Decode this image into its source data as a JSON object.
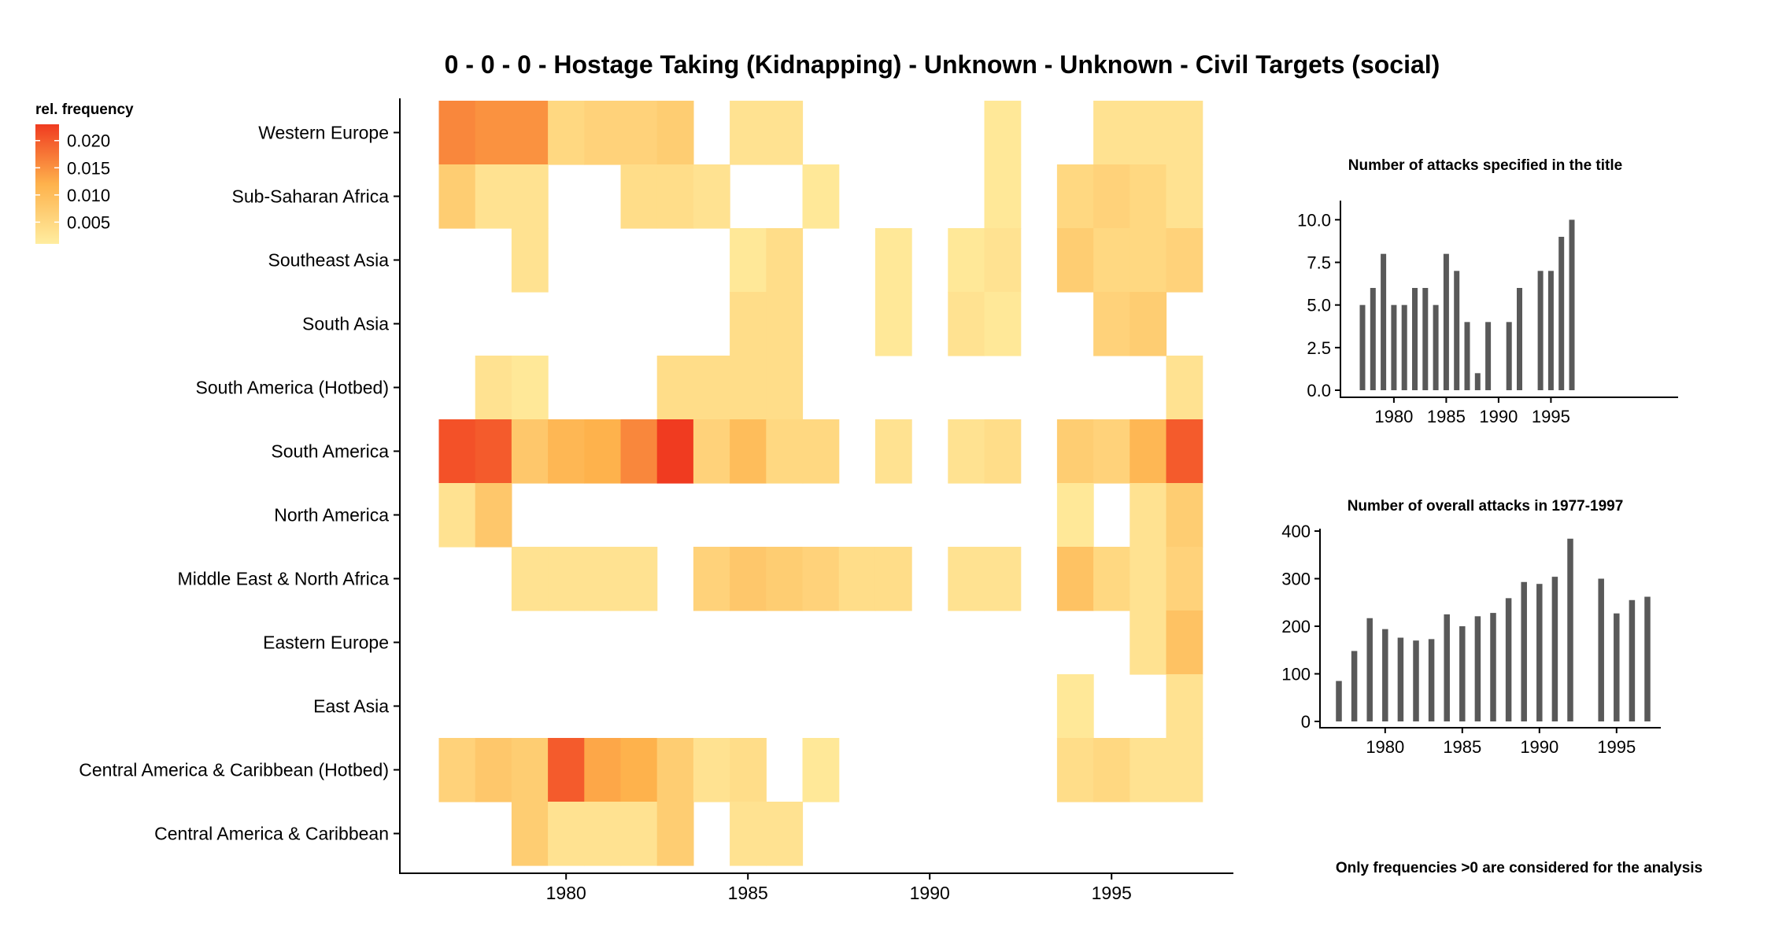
{
  "title": "0 - 0 - 0 - Hostage Taking (Kidnapping) - Unknown - Unknown - Civil Targets (social)",
  "legend": {
    "title": "rel. frequency",
    "labels": [
      "0.020",
      "0.015",
      "0.010",
      "0.005"
    ],
    "label_values": [
      0.02,
      0.015,
      0.01,
      0.005
    ],
    "range": [
      0.001,
      0.023
    ],
    "colors": {
      "low": "#FFEDA0",
      "mid": "#FEB24C",
      "high": "#F03B20"
    }
  },
  "footnote": "Only frequencies >0 are considered for the analysis",
  "chart_data": [
    {
      "type": "heatmap",
      "title": "0 - 0 - 0 - Hostage Taking (Kidnapping) - Unknown - Unknown - Civil Targets (social)",
      "x": [
        1977,
        1978,
        1979,
        1980,
        1981,
        1982,
        1983,
        1984,
        1985,
        1986,
        1987,
        1988,
        1989,
        1990,
        1991,
        1992,
        1993,
        1994,
        1995,
        1996,
        1997
      ],
      "x_ticks": [
        1980,
        1985,
        1990,
        1995
      ],
      "x_tick_labels": [
        "1980",
        "1985",
        "1990",
        "1995"
      ],
      "rows": [
        "Western Europe",
        "Sub-Saharan Africa",
        "Southeast Asia",
        "South Asia",
        "South America (Hotbed)",
        "South America",
        "North America",
        "Middle East & North Africa",
        "Eastern Europe",
        "East Asia",
        "Central America & Caribbean (Hotbed)",
        "Central America & Caribbean"
      ],
      "values": [
        [
          0.016,
          0.015,
          0.015,
          0.005,
          0.006,
          0.006,
          0.007,
          0,
          0.003,
          0.003,
          0,
          0,
          0,
          0,
          0,
          0.002,
          0,
          0,
          0.003,
          0.003,
          0.003
        ],
        [
          0.007,
          0.003,
          0.003,
          0,
          0,
          0.004,
          0.004,
          0.003,
          0,
          0,
          0.002,
          0,
          0,
          0,
          0,
          0.002,
          0,
          0.005,
          0.006,
          0.005,
          0.003
        ],
        [
          0,
          0,
          0.003,
          0,
          0,
          0,
          0,
          0,
          0.002,
          0.004,
          0,
          0,
          0.002,
          0,
          0.002,
          0.003,
          0,
          0.007,
          0.005,
          0.005,
          0.006
        ],
        [
          0,
          0,
          0,
          0,
          0,
          0,
          0,
          0,
          0.004,
          0.004,
          0,
          0,
          0.002,
          0,
          0.003,
          0.002,
          0,
          0,
          0.006,
          0.007,
          0
        ],
        [
          0,
          0.003,
          0.002,
          0,
          0,
          0,
          0.004,
          0.004,
          0.004,
          0.004,
          0,
          0,
          0,
          0,
          0,
          0,
          0,
          0,
          0,
          0,
          0.003
        ],
        [
          0.021,
          0.02,
          0.008,
          0.011,
          0.012,
          0.016,
          0.023,
          0.006,
          0.01,
          0.005,
          0.005,
          0,
          0.003,
          0,
          0.003,
          0.004,
          0,
          0.007,
          0.006,
          0.011,
          0.02
        ],
        [
          0.003,
          0.008,
          0,
          0,
          0,
          0,
          0,
          0,
          0,
          0,
          0,
          0,
          0,
          0,
          0,
          0,
          0,
          0.002,
          0,
          0.003,
          0.007
        ],
        [
          0,
          0,
          0.003,
          0.003,
          0.003,
          0.003,
          0,
          0.006,
          0.008,
          0.007,
          0.006,
          0.004,
          0.004,
          0,
          0.003,
          0.003,
          0,
          0.009,
          0.005,
          0.003,
          0.006
        ],
        [
          0,
          0,
          0,
          0,
          0,
          0,
          0,
          0,
          0,
          0,
          0,
          0,
          0,
          0,
          0,
          0,
          0,
          0,
          0,
          0.003,
          0.009
        ],
        [
          0,
          0,
          0,
          0,
          0,
          0,
          0,
          0,
          0,
          0,
          0,
          0,
          0,
          0,
          0,
          0,
          0,
          0.002,
          0,
          0,
          0.003
        ],
        [
          0.006,
          0.008,
          0.007,
          0.02,
          0.013,
          0.012,
          0.007,
          0.003,
          0.004,
          0,
          0.002,
          0,
          0,
          0,
          0,
          0,
          0,
          0.004,
          0.005,
          0.003,
          0.003
        ],
        [
          0,
          0,
          0.007,
          0.003,
          0.003,
          0.003,
          0.007,
          0,
          0.003,
          0.003,
          0,
          0,
          0,
          0,
          0,
          0,
          0,
          0,
          0,
          0,
          0
        ]
      ],
      "legend_title": "rel. frequency"
    },
    {
      "type": "bar",
      "title": "Number of attacks specified in the title",
      "x": [
        1977,
        1978,
        1979,
        1980,
        1981,
        1982,
        1983,
        1984,
        1985,
        1986,
        1987,
        1988,
        1989,
        1990,
        1991,
        1992,
        1993,
        1994,
        1995,
        1996,
        1997
      ],
      "values": [
        5,
        6,
        8,
        5,
        5,
        6,
        6,
        5,
        8,
        7,
        4,
        1,
        4,
        0,
        4,
        6,
        0,
        7,
        7,
        9,
        10
      ],
      "ylim": [
        0,
        10.5
      ],
      "y_ticks": [
        0.0,
        2.5,
        5.0,
        7.5,
        10.0
      ],
      "y_tick_labels": [
        "0.0",
        "2.5",
        "5.0",
        "7.5",
        "10.0"
      ],
      "x_ticks": [
        1980,
        1985,
        1990,
        1995
      ],
      "x_tick_labels": [
        "1980",
        "1985",
        "1990",
        "1995"
      ],
      "bar_color": "#595959"
    },
    {
      "type": "bar",
      "title": "Number of overall attacks in 1977-1997",
      "x": [
        1977,
        1978,
        1979,
        1980,
        1981,
        1982,
        1983,
        1984,
        1985,
        1986,
        1987,
        1988,
        1989,
        1990,
        1991,
        1992,
        1993,
        1994,
        1995,
        1996,
        1997
      ],
      "values": [
        85,
        148,
        217,
        194,
        176,
        170,
        173,
        225,
        200,
        221,
        228,
        259,
        293,
        289,
        304,
        384,
        0,
        300,
        227,
        255,
        262
      ],
      "ylim": [
        0,
        410
      ],
      "y_ticks": [
        0,
        100,
        200,
        300,
        400
      ],
      "y_tick_labels": [
        "0",
        "100",
        "200",
        "300",
        "400"
      ],
      "x_ticks": [
        1980,
        1985,
        1990,
        1995
      ],
      "x_tick_labels": [
        "1980",
        "1985",
        "1990",
        "1995"
      ],
      "bar_color": "#595959"
    }
  ]
}
